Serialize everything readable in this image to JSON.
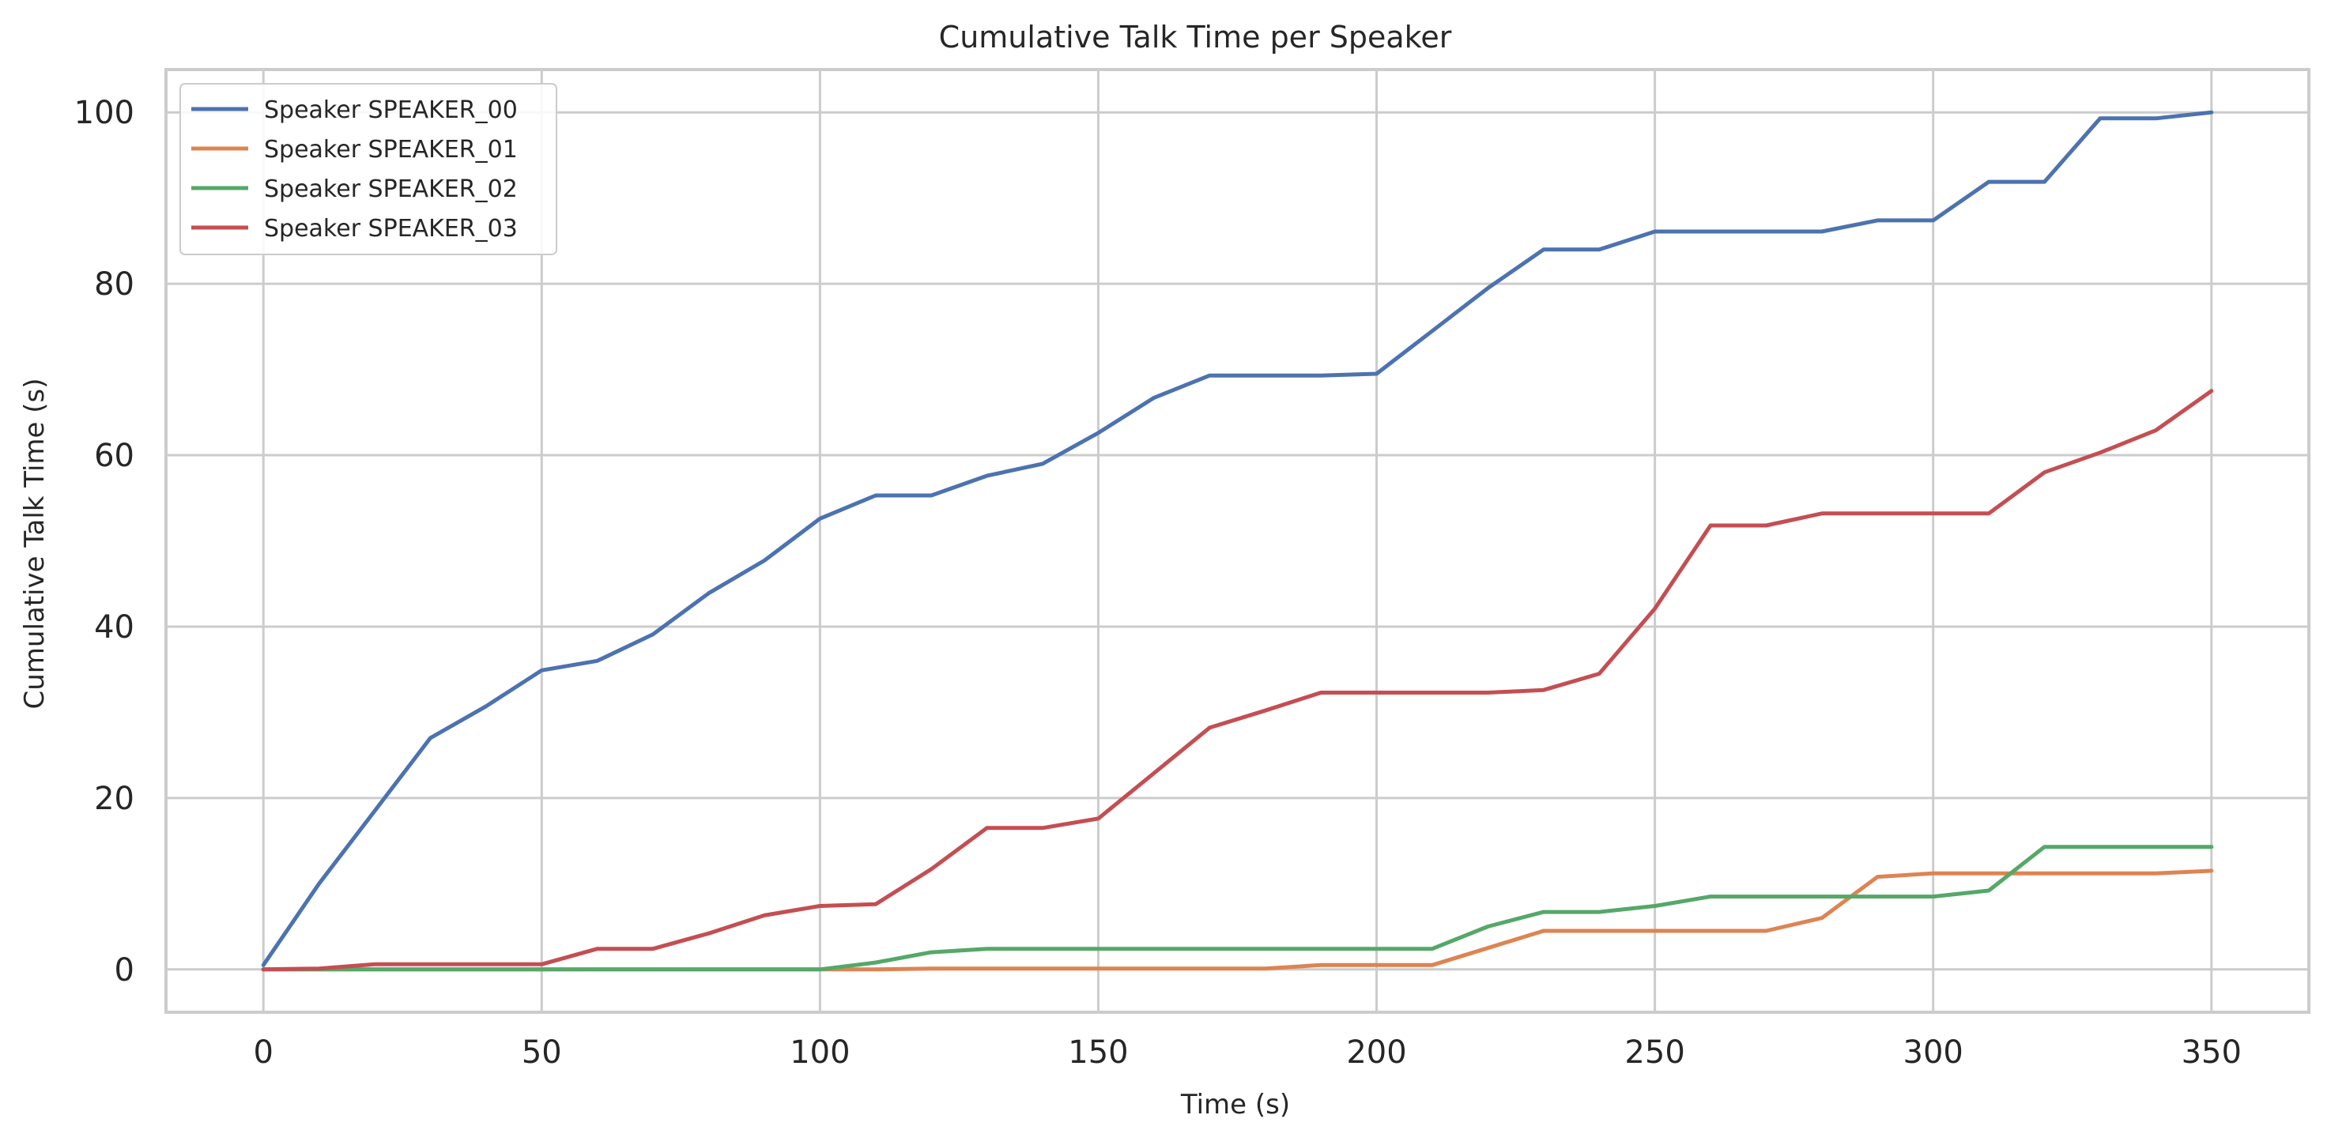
{
  "chart_data": {
    "type": "line",
    "title": "Cumulative Talk Time per Speaker",
    "xlabel": "Time (s)",
    "ylabel": "Cumulative Talk Time (s)",
    "xlim": [
      -17.5,
      367.5
    ],
    "ylim": [
      -5,
      105
    ],
    "x_ticks": [
      0,
      50,
      100,
      150,
      200,
      250,
      300,
      350
    ],
    "y_ticks": [
      0,
      20,
      40,
      60,
      80,
      100
    ],
    "grid": true,
    "legend_position": "top-left",
    "x": [
      0,
      10,
      20,
      30,
      40,
      50,
      60,
      70,
      80,
      90,
      100,
      110,
      120,
      130,
      140,
      150,
      160,
      170,
      180,
      190,
      200,
      210,
      220,
      230,
      240,
      250,
      260,
      270,
      280,
      290,
      300,
      310,
      320,
      330,
      340,
      350
    ],
    "series": [
      {
        "name": "Speaker SPEAKER_00",
        "color": "#4c72b0",
        "values": [
          0.5,
          10,
          18.5,
          27,
          30.7,
          34.9,
          36,
          39.1,
          43.9,
          47.7,
          52.6,
          55.3,
          55.3,
          57.6,
          59,
          62.6,
          66.7,
          69.3,
          69.3,
          69.3,
          69.5,
          74.5,
          79.5,
          84,
          84,
          86.1,
          86.1,
          86.1,
          86.1,
          87.4,
          87.4,
          91.9,
          91.9,
          99.3,
          99.3,
          100
        ]
      },
      {
        "name": "Speaker SPEAKER_01",
        "color": "#dd8452",
        "values": [
          0,
          0,
          0,
          0,
          0,
          0,
          0,
          0,
          0,
          0,
          0,
          0,
          0.1,
          0.1,
          0.1,
          0.1,
          0.1,
          0.1,
          0.1,
          0.5,
          0.5,
          0.5,
          2.5,
          4.5,
          4.5,
          4.5,
          4.5,
          4.5,
          6,
          10.8,
          11.2,
          11.2,
          11.2,
          11.2,
          11.2,
          11.5
        ]
      },
      {
        "name": "Speaker SPEAKER_02",
        "color": "#55a868",
        "values": [
          0,
          0,
          0,
          0,
          0,
          0,
          0,
          0,
          0,
          0,
          0,
          0.8,
          2,
          2.4,
          2.4,
          2.4,
          2.4,
          2.4,
          2.4,
          2.4,
          2.4,
          2.4,
          5,
          6.7,
          6.7,
          7.4,
          8.5,
          8.5,
          8.5,
          8.5,
          8.5,
          9.2,
          14.3,
          14.3,
          14.3,
          14.3
        ]
      },
      {
        "name": "Speaker SPEAKER_03",
        "color": "#c44e52",
        "values": [
          0,
          0.1,
          0.6,
          0.6,
          0.6,
          0.6,
          2.4,
          2.4,
          4.2,
          6.3,
          7.4,
          7.6,
          11.7,
          16.5,
          16.5,
          17.6,
          22.9,
          28.2,
          30.2,
          32.3,
          32.3,
          32.3,
          32.3,
          32.6,
          34.5,
          42.1,
          51.8,
          51.8,
          53.2,
          53.2,
          53.2,
          53.2,
          58,
          60.3,
          62.9,
          67.5
        ]
      }
    ]
  }
}
